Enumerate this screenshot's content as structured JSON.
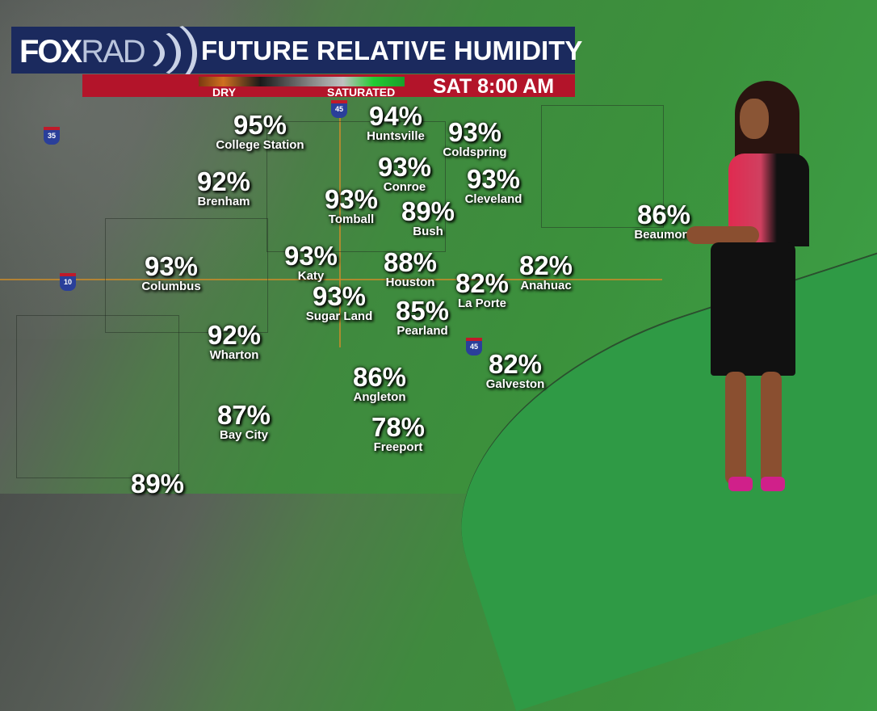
{
  "header": {
    "logo_main": "FOX",
    "logo_sub": "RAD",
    "title": "FUTURE RELATIVE HUMIDITY",
    "scale_low": "DRY",
    "scale_high": "SATURATED",
    "time": "SAT 8:00 AM"
  },
  "highways": [
    "35",
    "45",
    "10",
    "45"
  ],
  "cities": [
    {
      "pct": "95%",
      "name": "College Station"
    },
    {
      "pct": "94%",
      "name": "Huntsville"
    },
    {
      "pct": "93%",
      "name": "Coldspring"
    },
    {
      "pct": "92%",
      "name": "Brenham"
    },
    {
      "pct": "93%",
      "name": "Conroe"
    },
    {
      "pct": "93%",
      "name": "Cleveland"
    },
    {
      "pct": "93%",
      "name": "Tomball"
    },
    {
      "pct": "89%",
      "name": "Bush"
    },
    {
      "pct": "86%",
      "name": "Beaumont"
    },
    {
      "pct": "93%",
      "name": "Columbus"
    },
    {
      "pct": "93%",
      "name": "Katy"
    },
    {
      "pct": "88%",
      "name": "Houston"
    },
    {
      "pct": "82%",
      "name": "Anahuac"
    },
    {
      "pct": "82%",
      "name": "La Porte"
    },
    {
      "pct": "93%",
      "name": "Sugar Land"
    },
    {
      "pct": "85%",
      "name": "Pearland"
    },
    {
      "pct": "92%",
      "name": "Wharton"
    },
    {
      "pct": "82%",
      "name": "Galveston"
    },
    {
      "pct": "86%",
      "name": "Angleton"
    },
    {
      "pct": "87%",
      "name": "Bay City"
    },
    {
      "pct": "78%",
      "name": "Freeport"
    },
    {
      "pct": "89%",
      "name": ""
    }
  ],
  "colors": {
    "banner": "#1b2a5e",
    "bar": "#b3142a",
    "saturated": "#22cc33",
    "dry": "#d07020"
  }
}
